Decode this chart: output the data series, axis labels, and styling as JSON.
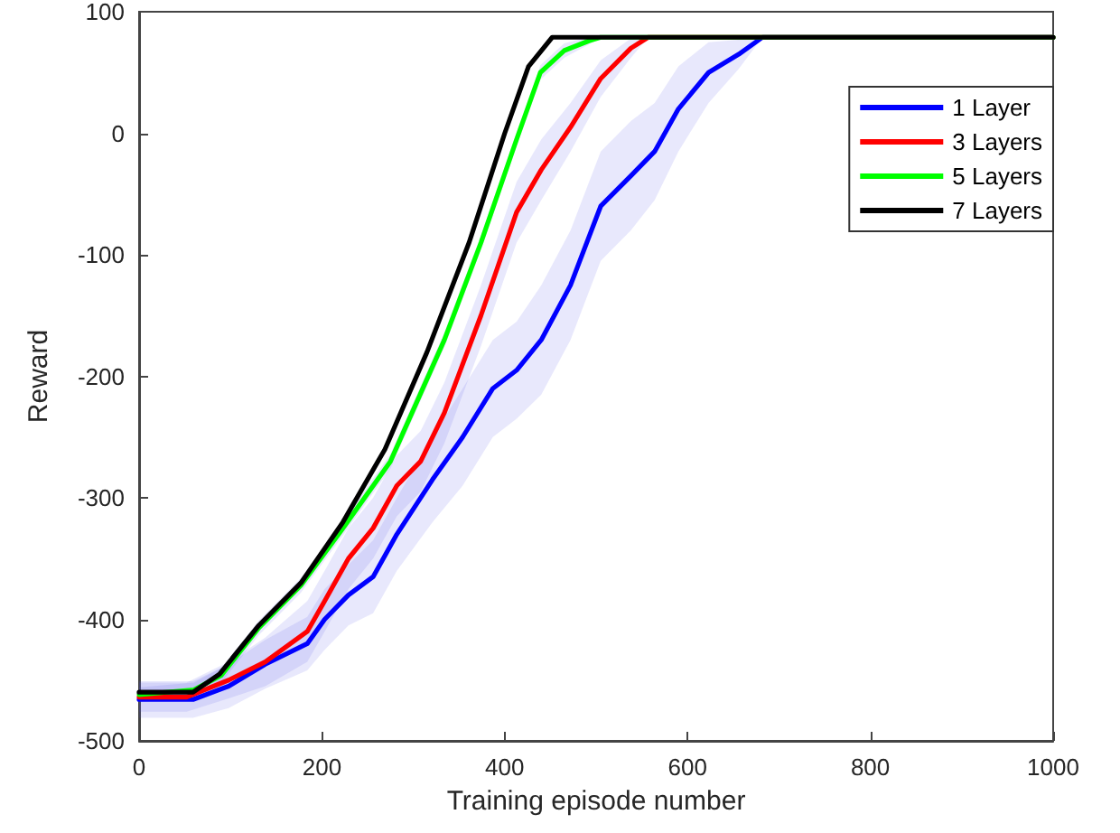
{
  "chart_data": {
    "type": "line",
    "xlabel": "Training episode number",
    "ylabel": "Reward",
    "xlim": [
      0,
      1000
    ],
    "xticks": [
      0,
      200,
      400,
      600,
      800,
      1000
    ],
    "ylim": [
      -500,
      100
    ],
    "yticks": [
      -500,
      -400,
      -300,
      -200,
      -100,
      0,
      100
    ],
    "grid": false,
    "legend": "top right",
    "marker": "none",
    "line_style": "solid",
    "series": [
      {
        "name": "1 Layer",
        "color": "#0000ff",
        "x": [
          0,
          59,
          98,
          138,
          184,
          203,
          229,
          256,
          282,
          321,
          354,
          387,
          413,
          440,
          472,
          505,
          538,
          564,
          590,
          623,
          656,
          682,
          1000
        ],
        "values": [
          -466,
          -466,
          -455,
          -437,
          -420,
          -400,
          -380,
          -365,
          -330,
          -285,
          -250,
          -210,
          -195,
          -170,
          -125,
          -60,
          -35,
          -15,
          20,
          50,
          65,
          79,
          79
        ],
        "lower": [
          -481,
          -481,
          -473,
          -457,
          -442,
          -425,
          -405,
          -395,
          -360,
          -320,
          -290,
          -250,
          -235,
          -215,
          -170,
          -105,
          -80,
          -55,
          -15,
          25,
          53,
          79,
          79
        ],
        "upper": [
          -451,
          -451,
          -437,
          -417,
          -398,
          -375,
          -355,
          -335,
          -300,
          -250,
          -210,
          -170,
          -155,
          -125,
          -80,
          -15,
          10,
          25,
          55,
          75,
          77,
          79,
          79
        ]
      },
      {
        "name": "3 Layers",
        "color": "#ff0000",
        "x": [
          0,
          52,
          98,
          138,
          184,
          203,
          229,
          256,
          282,
          308,
          334,
          374,
          413,
          440,
          472,
          505,
          538,
          557,
          1000
        ],
        "values": [
          -464,
          -464,
          -450,
          -435,
          -410,
          -385,
          -350,
          -325,
          -290,
          -270,
          -230,
          -150,
          -65,
          -30,
          5,
          45,
          70,
          79,
          79
        ],
        "lower": [
          -476,
          -476,
          -465,
          -455,
          -435,
          -410,
          -375,
          -350,
          -315,
          -295,
          -255,
          -175,
          -90,
          -55,
          -15,
          30,
          62,
          79,
          79
        ],
        "upper": [
          -452,
          -452,
          -435,
          -415,
          -385,
          -360,
          -325,
          -300,
          -265,
          -245,
          -205,
          -125,
          -40,
          -5,
          25,
          60,
          78,
          79,
          79
        ]
      },
      {
        "name": "5 Layers",
        "color": "#00ff00",
        "x": [
          0,
          60,
          90,
          131,
          177,
          223,
          275,
          334,
          374,
          413,
          439,
          465,
          492,
          505,
          1000
        ],
        "values": [
          -462,
          -458,
          -446,
          -407,
          -372,
          -325,
          -270,
          -170,
          -90,
          -5,
          50,
          68,
          76,
          79,
          79
        ],
        "lower": [
          -468,
          -464,
          -452,
          -413,
          -378,
          -331,
          -276,
          -176,
          -96,
          -11,
          44,
          62,
          73,
          79,
          79
        ],
        "upper": [
          -456,
          -452,
          -440,
          -401,
          -366,
          -319,
          -264,
          -164,
          -84,
          1,
          56,
          74,
          79,
          79,
          79
        ]
      },
      {
        "name": "7 Layers",
        "color": "#000000",
        "x": [
          0,
          59,
          88,
          131,
          177,
          223,
          269,
          315,
          361,
          400,
          426,
          452,
          1000
        ],
        "values": [
          -460,
          -460,
          -445,
          -405,
          -370,
          -320,
          -260,
          -180,
          -90,
          0,
          55,
          79,
          79
        ]
      }
    ]
  }
}
